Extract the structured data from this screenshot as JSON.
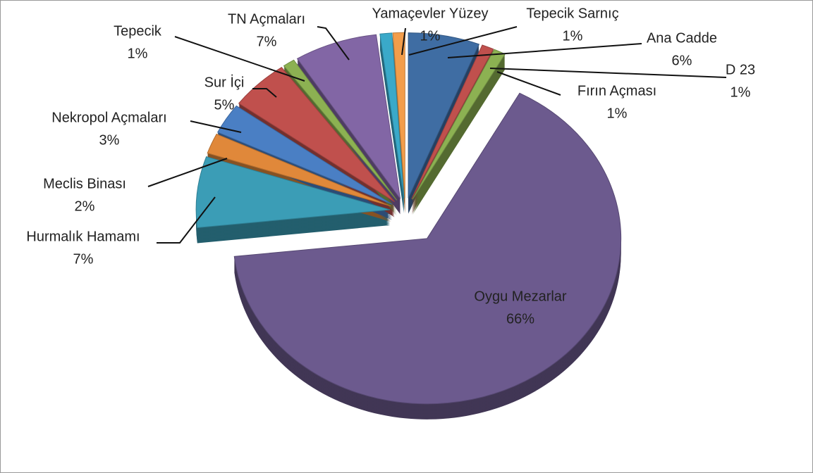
{
  "chart_data": {
    "type": "pie",
    "categories": [
      "Ana Cadde",
      "D 23",
      "Fırın Açması",
      "Oygu Mezarlar",
      "Hurmalık Hamamı",
      "Meclis Binası",
      "Nekropol Açmaları",
      "Sur İçi",
      "Tepecik",
      "TN Açmaları",
      "Yamaçevler Yüzey",
      "Tepecik Sarnıç"
    ],
    "values": [
      6,
      1,
      1,
      66,
      7,
      2,
      3,
      5,
      1,
      7,
      1,
      1
    ],
    "value_labels": [
      "6%",
      "1%",
      "1%",
      "66%",
      "7%",
      "2%",
      "3%",
      "5%",
      "1%",
      "7%",
      "1%",
      "1%"
    ],
    "colors": [
      "#3f6da3",
      "#c0504d",
      "#8cb152",
      "#6c5a8e",
      "#3b9db6",
      "#e0883a",
      "#4a7fc4",
      "#c0504d",
      "#8cb152",
      "#8266a5",
      "#3aa9c9",
      "#f29d4b"
    ]
  }
}
